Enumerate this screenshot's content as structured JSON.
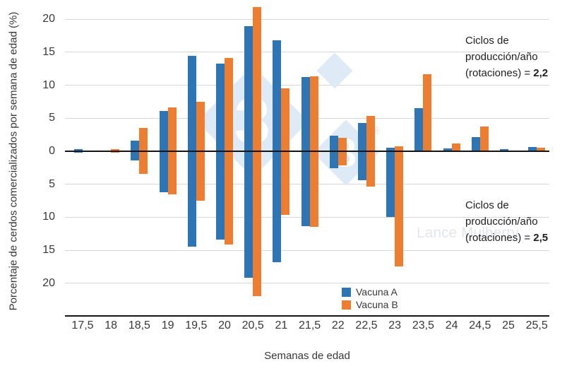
{
  "chart_data": {
    "type": "bar",
    "variant": "mirrored-vertical-bars (top half = scenario 2,2 rotations; bottom half = scenario 2,5 rotations)",
    "title": "",
    "xlabel": "Semanas de edad",
    "ylabel": "Porcentaje de cerdos comercializados por semana de edad (%)",
    "categories": [
      "17,5",
      "18",
      "18,5",
      "19",
      "19,5",
      "20",
      "20,5",
      "21",
      "21,5",
      "22",
      "22,5",
      "23",
      "23,5",
      "24",
      "24,5",
      "25",
      "25,5"
    ],
    "y_axis": {
      "tick_labels": [
        "20",
        "15",
        "10",
        "5",
        "0",
        "5",
        "10",
        "15",
        "20"
      ],
      "unit": "%",
      "grid": true,
      "ylim_top": 22.5,
      "ylim_bottom": -22.5
    },
    "legend": {
      "position": "bottom-center",
      "items": [
        {
          "label": "Vacuna A",
          "color": "#2e75b6"
        },
        {
          "label": "Vacuna B",
          "color": "#ed7d31"
        }
      ]
    },
    "top_half": {
      "scenario": "Ciclos de producción/año (rotaciones) = 2,2",
      "series": [
        {
          "name": "Vacuna A",
          "color": "#2e75b6",
          "values": [
            0.3,
            0,
            1.6,
            6.1,
            14.5,
            13.3,
            19.0,
            16.8,
            11.2,
            2.4,
            4.3,
            0.5,
            6.5,
            0.4,
            2.1,
            0.3,
            0.6
          ]
        },
        {
          "name": "Vacuna B",
          "color": "#ed7d31",
          "values": [
            0,
            0.3,
            3.5,
            6.6,
            7.5,
            14.1,
            21.8,
            9.5,
            11.3,
            2.0,
            5.3,
            0.8,
            11.7,
            1.2,
            3.7,
            0,
            0.5
          ]
        }
      ]
    },
    "bottom_half": {
      "scenario": "Ciclos de producción/año (rotaciones) = 2,5",
      "series": [
        {
          "name": "Vacuna A",
          "color": "#2e75b6",
          "values": [
            0.2,
            0,
            1.4,
            6.2,
            14.5,
            13.4,
            19.2,
            16.8,
            11.3,
            2.6,
            4.4,
            10.0,
            0,
            0,
            0,
            0,
            0
          ]
        },
        {
          "name": "Vacuna B",
          "color": "#ed7d31",
          "values": [
            0,
            0.2,
            3.4,
            6.5,
            7.5,
            14.1,
            21.9,
            9.6,
            11.5,
            2.1,
            5.4,
            17.4,
            0,
            0,
            0,
            0,
            0
          ]
        }
      ]
    },
    "annotations": [
      {
        "lines": [
          "Ciclos de",
          "producción/año"
        ],
        "last_line_prefix": "(rotaciones) = ",
        "bold_value": "2,2",
        "placement": "top-right"
      },
      {
        "lines": [
          "Ciclos de",
          "producción/año"
        ],
        "last_line_prefix": "(rotaciones) = ",
        "bold_value": "2,5",
        "placement": "bottom-right"
      }
    ]
  },
  "watermark": {
    "brand_digit": "3",
    "registered_mark": "®",
    "author_text": "Lance Mulberry"
  }
}
